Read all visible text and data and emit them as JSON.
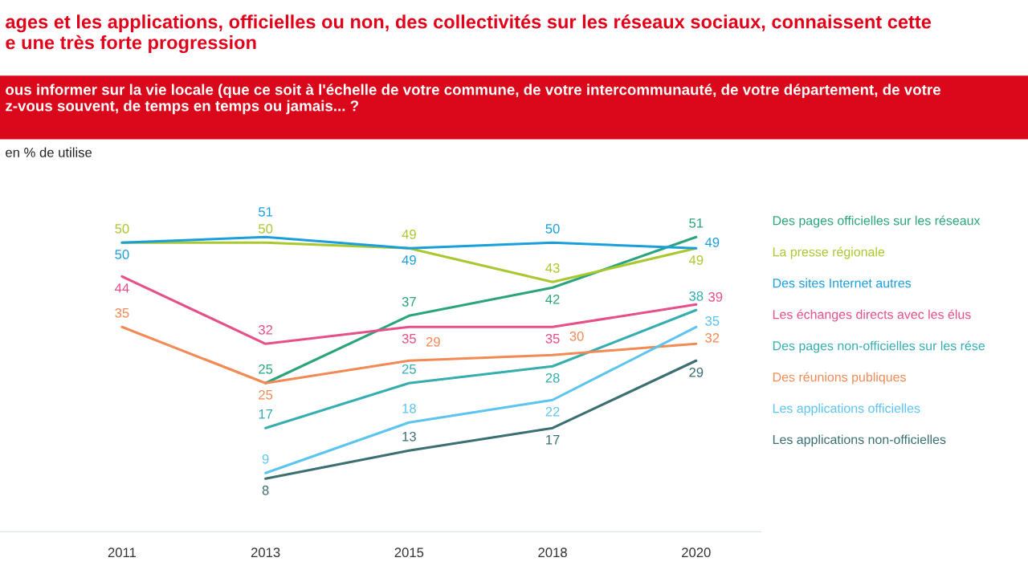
{
  "chart_data": {
    "type": "line",
    "title": "ages et les applications, officielles ou non, des collectivités sur les réseaux sociaux, connaissent cette\ne une très forte progression",
    "subtitle": "ous informer sur la vie locale (que ce soit à l'échelle de votre commune, de votre intercommunauté, de votre département, de votre\nz-vous souvent, de temps en temps ou jamais... ?",
    "annotations": [
      "en % de utilise"
    ],
    "categories": [
      "2011",
      "2013",
      "2015",
      "2018",
      "2020"
    ],
    "series": [
      {
        "name": "Des pages officielles sur les réseaux",
        "color": "#2ba47e",
        "values": [
          null,
          25,
          37,
          42,
          51
        ]
      },
      {
        "name": "La presse régionale",
        "color": "#a9c72f",
        "values": [
          50,
          50,
          49,
          43,
          49
        ]
      },
      {
        "name": "Des sites Internet autres",
        "color": "#1b9fdc",
        "values": [
          50,
          51,
          49,
          50,
          49
        ]
      },
      {
        "name": "Les échanges directs avec les élus",
        "color": "#e6508a",
        "values": [
          44,
          32,
          35,
          35,
          39
        ]
      },
      {
        "name": "Des pages non-officielles sur les rése",
        "color": "#36aeb0",
        "values": [
          null,
          17,
          25,
          28,
          38
        ]
      },
      {
        "name": "Des réunions publiques",
        "color": "#f28a55",
        "values": [
          35,
          25,
          29,
          30,
          32
        ]
      },
      {
        "name": "Les applications officielles",
        "color": "#5cc4ee",
        "values": [
          null,
          9,
          18,
          22,
          35
        ]
      },
      {
        "name": "Les applications non-officielles",
        "color": "#3b6f72",
        "values": [
          null,
          8,
          13,
          17,
          29
        ]
      }
    ],
    "data_labels": true,
    "legend": "right",
    "grid": false,
    "marker": "none",
    "line_style": "solid"
  }
}
